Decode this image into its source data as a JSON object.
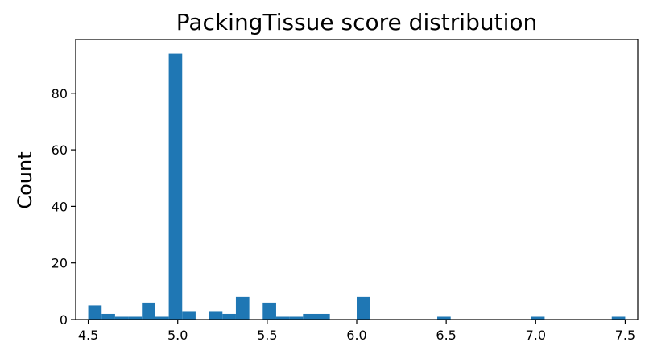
{
  "chart_data": {
    "type": "bar",
    "title": "PackingTissue score distribution",
    "xlabel": "",
    "ylabel": "Count",
    "xlim": [
      4.43,
      7.57
    ],
    "ylim": [
      0,
      99
    ],
    "grid": false,
    "legend": "none",
    "bar_color": "#1f77b4",
    "x_ticks": [
      4.5,
      5.0,
      5.5,
      6.0,
      6.5,
      7.0,
      7.5
    ],
    "x_tick_labels": [
      "4.5",
      "5.0",
      "5.5",
      "6.0",
      "6.5",
      "7.0",
      "7.5"
    ],
    "y_ticks": [
      0,
      20,
      40,
      60,
      80
    ],
    "y_tick_labels": [
      "0",
      "20",
      "40",
      "60",
      "80"
    ],
    "bin_start": 4.5,
    "bin_width": 0.075,
    "counts": [
      5,
      2,
      1,
      1,
      6,
      1,
      94,
      3,
      0,
      3,
      2,
      8,
      0,
      6,
      1,
      1,
      2,
      2,
      0,
      0,
      8,
      0,
      0,
      0,
      0,
      0,
      1,
      0,
      0,
      0,
      0,
      0,
      0,
      1,
      0,
      0,
      0,
      0,
      0,
      1
    ]
  }
}
